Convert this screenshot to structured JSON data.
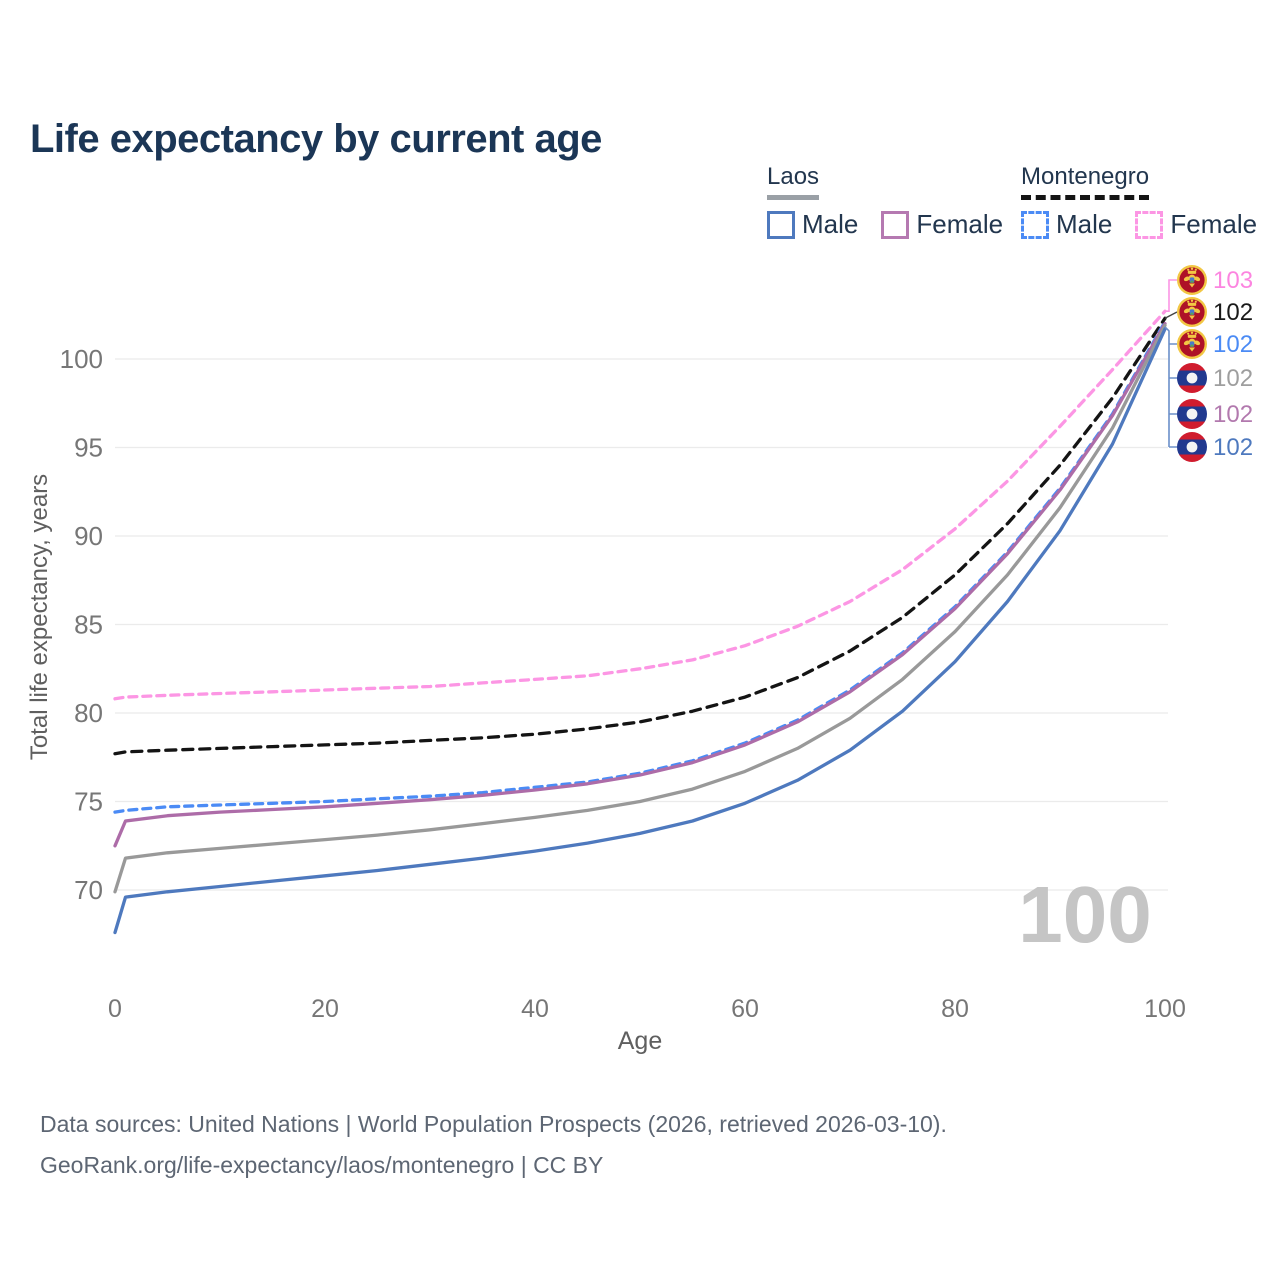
{
  "title": "Life expectancy by current age",
  "legend": {
    "groups": [
      {
        "id": "laos",
        "label": "Laos",
        "line_style": "solid",
        "items": [
          {
            "id": "laos-male",
            "label": "Male",
            "color": "#4e79be"
          },
          {
            "id": "laos-female",
            "label": "Female",
            "color": "#b579b1"
          }
        ]
      },
      {
        "id": "montenegro",
        "label": "Montenegro",
        "line_style": "dashed",
        "items": [
          {
            "id": "montenegro-male",
            "label": "Male",
            "color": "#4b8bf5"
          },
          {
            "id": "montenegro-female",
            "label": "Female",
            "color": "#fc96e4"
          }
        ]
      }
    ]
  },
  "chart_data": {
    "type": "line",
    "title": "Life expectancy by current age",
    "xlabel": "Age",
    "ylabel": "Total life expectancy, years",
    "x_ticks": [
      0,
      20,
      40,
      60,
      80,
      100
    ],
    "y_ticks": [
      70,
      75,
      80,
      85,
      90,
      95,
      100
    ],
    "xlim": [
      0,
      100
    ],
    "ylim_visible": [
      70,
      100
    ],
    "grid": "horizontal-only",
    "gridline_color": "#ebebeb",
    "tick_label_color": "#767676",
    "axis_title_color": "#5f5f5f",
    "watermark": "100",
    "watermark_color": "#c5c5c5",
    "x": [
      0,
      1,
      5,
      10,
      15,
      20,
      25,
      30,
      35,
      40,
      45,
      50,
      55,
      60,
      65,
      70,
      75,
      80,
      85,
      90,
      95,
      100
    ],
    "series": [
      {
        "name": "Montenegro Female",
        "country": "Montenegro",
        "sex": "Female",
        "line": "dashed",
        "color": "#fc96e4",
        "values": [
          80.8,
          80.9,
          81.0,
          81.1,
          81.2,
          81.3,
          81.4,
          81.5,
          81.7,
          81.9,
          82.1,
          82.5,
          83.0,
          83.8,
          84.9,
          86.3,
          88.1,
          90.4,
          93.1,
          96.2,
          99.4,
          102.7
        ]
      },
      {
        "name": "Montenegro Both sexes",
        "country": "Montenegro",
        "sex": "Both",
        "line": "dashed",
        "color": "#141414",
        "values": [
          77.7,
          77.8,
          77.9,
          78.0,
          78.1,
          78.2,
          78.3,
          78.45,
          78.6,
          78.8,
          79.1,
          79.5,
          80.1,
          80.9,
          82.0,
          83.5,
          85.4,
          87.8,
          90.7,
          94.0,
          97.8,
          102.3
        ]
      },
      {
        "name": "Montenegro Male",
        "country": "Montenegro",
        "sex": "Male",
        "line": "dashed",
        "color": "#4b8bf5",
        "values": [
          74.4,
          74.5,
          74.7,
          74.8,
          74.9,
          75.0,
          75.15,
          75.3,
          75.5,
          75.8,
          76.1,
          76.6,
          77.3,
          78.3,
          79.6,
          81.3,
          83.4,
          86.0,
          89.1,
          92.7,
          96.9,
          102.1
        ]
      },
      {
        "name": "Laos Female",
        "country": "Laos",
        "sex": "Female",
        "line": "solid",
        "color": "#ad6ca8",
        "values": [
          72.5,
          73.9,
          74.2,
          74.4,
          74.55,
          74.7,
          74.9,
          75.1,
          75.35,
          75.65,
          76.0,
          76.5,
          77.2,
          78.2,
          79.5,
          81.2,
          83.3,
          85.9,
          89.0,
          92.6,
          96.8,
          102.0
        ]
      },
      {
        "name": "Laos Both sexes",
        "country": "Laos",
        "sex": "Both",
        "line": "solid",
        "color": "#999999",
        "values": [
          69.9,
          71.8,
          72.1,
          72.35,
          72.6,
          72.85,
          73.1,
          73.4,
          73.75,
          74.1,
          74.5,
          75.0,
          75.7,
          76.7,
          78.0,
          79.7,
          81.9,
          84.6,
          87.8,
          91.6,
          96.1,
          101.9
        ]
      },
      {
        "name": "Laos Male",
        "country": "Laos",
        "sex": "Male",
        "line": "solid",
        "color": "#4e79be",
        "values": [
          67.6,
          69.6,
          69.9,
          70.2,
          70.5,
          70.8,
          71.1,
          71.45,
          71.8,
          72.2,
          72.65,
          73.2,
          73.9,
          74.9,
          76.2,
          77.9,
          80.1,
          82.9,
          86.3,
          90.3,
          95.2,
          101.7
        ]
      }
    ],
    "end_labels": [
      {
        "flag": "montenegro",
        "text": "103",
        "color": "#fc85e0",
        "series": "Montenegro Female"
      },
      {
        "flag": "montenegro",
        "text": "102",
        "color": "#1a1a1a",
        "series": "Montenegro Both sexes"
      },
      {
        "flag": "montenegro",
        "text": "102",
        "color": "#4b8bf5",
        "series": "Montenegro Male"
      },
      {
        "flag": "laos",
        "text": "102",
        "color": "#9e9e9e",
        "series": "Laos Both sexes"
      },
      {
        "flag": "laos",
        "text": "102",
        "color": "#b279ae",
        "series": "Laos Female"
      },
      {
        "flag": "laos",
        "text": "102",
        "color": "#4e79be",
        "series": "Laos Male"
      }
    ],
    "flag_colors": {
      "montenegro": {
        "ring": "#f2c744",
        "field": "#ae1127",
        "emblem": "#f2c744",
        "shield": "#4a79c9",
        "shield_base": "#58a35a"
      },
      "laos": {
        "red": "#d01c2e",
        "blue": "#21398f",
        "disc": "#f4f4f4"
      }
    }
  },
  "footer": {
    "line1": "Data sources: United Nations | World Population Prospects (2026, retrieved 2026-03-10).",
    "line2": "GeoRank.org/life-expectancy/laos/montenegro | CC BY"
  }
}
